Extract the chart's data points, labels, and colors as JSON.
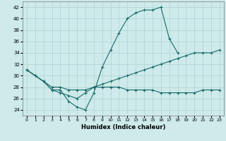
{
  "xlabel": "Humidex (Indice chaleur)",
  "xlim": [
    -0.5,
    23.5
  ],
  "ylim": [
    23,
    43
  ],
  "yticks": [
    24,
    26,
    28,
    30,
    32,
    34,
    36,
    38,
    40,
    42
  ],
  "xticks": [
    0,
    1,
    2,
    3,
    4,
    5,
    6,
    7,
    8,
    9,
    10,
    11,
    12,
    13,
    14,
    15,
    16,
    17,
    18,
    19,
    20,
    21,
    22,
    23
  ],
  "bg_color": "#ceeaea",
  "grid_color": "#aed4d4",
  "line_color": "#1a6b6b",
  "line1_x": [
    0,
    1,
    2,
    3,
    4,
    5,
    6,
    7,
    8,
    9,
    10,
    11,
    12,
    13,
    14,
    15,
    16,
    17,
    18
  ],
  "line1_y": [
    31,
    30,
    29,
    27.5,
    27.5,
    25.5,
    24.5,
    24,
    27,
    31.5,
    34.5,
    37.5,
    40,
    41,
    41.5,
    41.5,
    42,
    36.5,
    34
  ],
  "line2_x": [
    0,
    1,
    2,
    3,
    4,
    5,
    6,
    7,
    8,
    9,
    10,
    11,
    12,
    13,
    14,
    15,
    16,
    17,
    18,
    19,
    20,
    21,
    22,
    23
  ],
  "line2_y": [
    31,
    30,
    29,
    28,
    28,
    27.5,
    27.5,
    27.5,
    28,
    28.5,
    29,
    29.5,
    30,
    30.5,
    31,
    31.5,
    32,
    32.5,
    33,
    33.5,
    34,
    34,
    34,
    34.5
  ],
  "line3_x": [
    0,
    2,
    3,
    4,
    5,
    6,
    7,
    8,
    9,
    10,
    11,
    12,
    13,
    14,
    15,
    16,
    17,
    18,
    19,
    20,
    21,
    22,
    23
  ],
  "line3_y": [
    31,
    29,
    27.5,
    27,
    26.5,
    26,
    27,
    28,
    28,
    28,
    28,
    27.5,
    27.5,
    27.5,
    27.5,
    27,
    27,
    27,
    27,
    27,
    27.5,
    27.5,
    27.5
  ]
}
